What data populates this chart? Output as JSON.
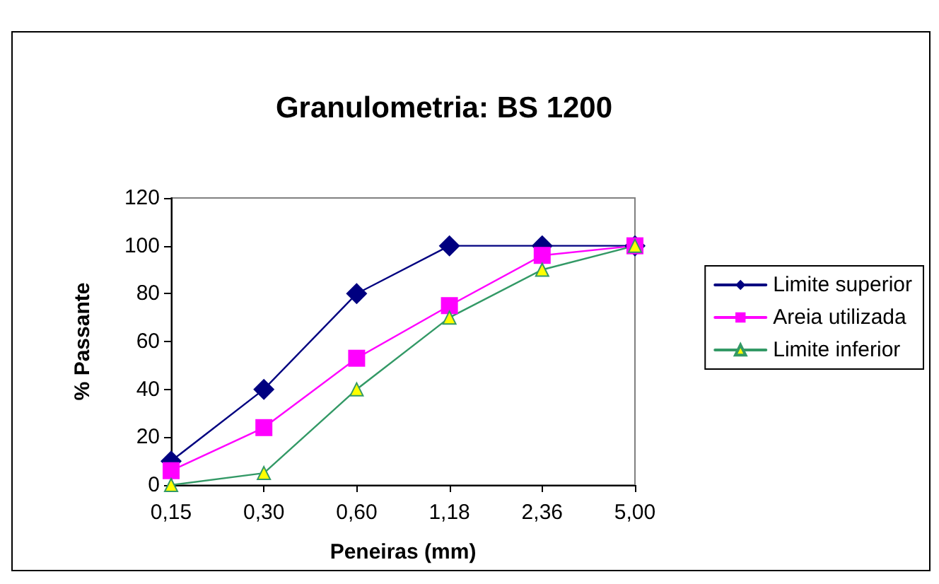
{
  "chart_data": {
    "type": "line",
    "title": "Granulometria: BS 1200",
    "xlabel": "Peneiras (mm)",
    "ylabel": "% Passante",
    "categories": [
      "0,15",
      "0,30",
      "0,60",
      "1,18",
      "2,36",
      "5,00"
    ],
    "series": [
      {
        "name": "Limite superior",
        "color": "#000080",
        "marker": "diamond",
        "values": [
          10,
          40,
          80,
          100,
          100,
          100
        ]
      },
      {
        "name": "Areia utilizada",
        "color": "#ff00ff",
        "marker": "square",
        "values": [
          6,
          24,
          53,
          75,
          96,
          100
        ]
      },
      {
        "name": "Limite inferior",
        "color": "#339966",
        "marker": "triangle",
        "values": [
          0,
          5,
          40,
          70,
          90,
          100
        ]
      }
    ],
    "ylim": [
      0,
      120
    ],
    "yticks": [
      0,
      20,
      40,
      60,
      80,
      100,
      120
    ],
    "grid": false,
    "legend": "right",
    "line_style": "solid"
  }
}
